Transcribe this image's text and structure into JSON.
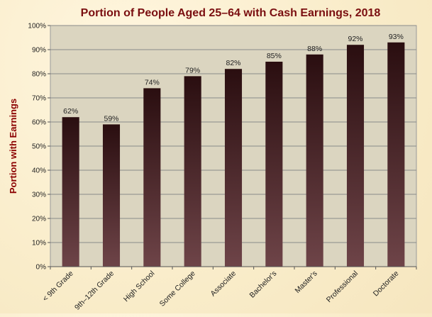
{
  "chart_data": {
    "type": "bar",
    "title": "Portion of People Aged 25–64 with Cash Earnings, 2018",
    "xlabel": "",
    "ylabel": "Portion with Earnings",
    "categories": [
      "< 9th Grade",
      "9th–12th Grade",
      "High School",
      "Some College",
      "Associate",
      "Bachelor's",
      "Master's",
      "Professional",
      "Doctorate"
    ],
    "values": [
      62,
      59,
      74,
      79,
      82,
      85,
      88,
      92,
      93
    ],
    "data_labels": [
      "62%",
      "59%",
      "74%",
      "79%",
      "82%",
      "85%",
      "88%",
      "92%",
      "93%"
    ],
    "ylim": [
      0,
      100
    ],
    "yticks": [
      0,
      10,
      20,
      30,
      40,
      50,
      60,
      70,
      80,
      90,
      100
    ],
    "ytick_labels": [
      "0%",
      "10%",
      "20%",
      "30%",
      "40%",
      "50%",
      "60%",
      "70%",
      "80%",
      "90%",
      "100%"
    ],
    "grid": true,
    "legend": "none",
    "colors": {
      "title": "#7a0e10",
      "ylabel": "#8b0000",
      "plot_bg": "#dbd5c0",
      "gridline": "#8a8a8a",
      "bar_top": "#2a0e10",
      "bar_bottom": "#6e4448"
    }
  }
}
